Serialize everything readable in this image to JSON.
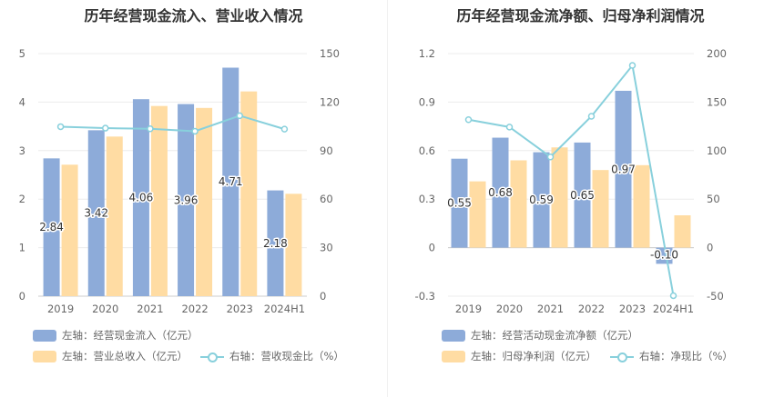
{
  "colors": {
    "bar_main": "#8dabd9",
    "bar_secondary": "#ffdca3",
    "line": "#88d0dc"
  },
  "chart_data": [
    {
      "type": "bar",
      "title": "历年经营现金流入、营业收入情况",
      "categories": [
        "2019",
        "2020",
        "2021",
        "2022",
        "2023",
        "2024H1"
      ],
      "y_left": {
        "ylim": [
          0,
          5
        ],
        "ticks": [
          "0",
          "1",
          "2",
          "3",
          "4",
          "5"
        ]
      },
      "y_right": {
        "ylim": [
          0,
          150
        ],
        "ticks": [
          "0",
          "30",
          "60",
          "90",
          "120",
          "150"
        ]
      },
      "series": [
        {
          "name": "左轴：经营现金流入（亿元）",
          "type": "bar",
          "axis": "left",
          "values": [
            2.84,
            3.42,
            4.06,
            3.96,
            4.71,
            2.18
          ],
          "labels": [
            "2.84",
            "3.42",
            "4.06",
            "3.96",
            "4.71",
            "2.18"
          ]
        },
        {
          "name": "左轴：营业总收入（亿元）",
          "type": "bar",
          "axis": "left",
          "values": [
            2.71,
            3.29,
            3.92,
            3.88,
            4.22,
            2.11
          ]
        },
        {
          "name": "右轴：营收现金比（%）",
          "type": "line",
          "axis": "right",
          "values": [
            104.8,
            103.9,
            103.5,
            102.0,
            111.6,
            103.3
          ]
        }
      ],
      "legend": {
        "position": "bottom-left",
        "items": [
          "左轴：经营现金流入（亿元）",
          "左轴：营业总收入（亿元）",
          "右轴：营收现金比（%）"
        ]
      }
    },
    {
      "type": "bar",
      "title": "历年经营现金流净额、归母净利润情况",
      "categories": [
        "2019",
        "2020",
        "2021",
        "2022",
        "2023",
        "2024H1"
      ],
      "y_left": {
        "ylim": [
          -0.3,
          1.2
        ],
        "ticks": [
          "-0.3",
          "0",
          "0.3",
          "0.6",
          "0.9",
          "1.2"
        ]
      },
      "y_right": {
        "ylim": [
          -50,
          200
        ],
        "ticks": [
          "-50",
          "0",
          "50",
          "100",
          "150",
          "200"
        ]
      },
      "series": [
        {
          "name": "左轴：经营活动现金流净额（亿元）",
          "type": "bar",
          "axis": "left",
          "values": [
            0.55,
            0.68,
            0.59,
            0.65,
            0.97,
            -0.1
          ],
          "labels": [
            "0.55",
            "0.68",
            "0.59",
            "0.65",
            "0.97",
            "-0.10"
          ]
        },
        {
          "name": "左轴：归母净利润（亿元）",
          "type": "bar",
          "axis": "left",
          "values": [
            0.41,
            0.54,
            0.62,
            0.48,
            0.51,
            0.2
          ]
        },
        {
          "name": "右轴：净现比（%）",
          "type": "line",
          "axis": "right",
          "values": [
            131.9,
            124.3,
            93.5,
            135.4,
            187.8,
            -49.5
          ]
        }
      ],
      "legend": {
        "position": "bottom-left",
        "items": [
          "左轴：经营活动现金流净额（亿元）",
          "左轴：归母净利润（亿元）",
          "右轴：净现比（%）"
        ]
      }
    }
  ]
}
